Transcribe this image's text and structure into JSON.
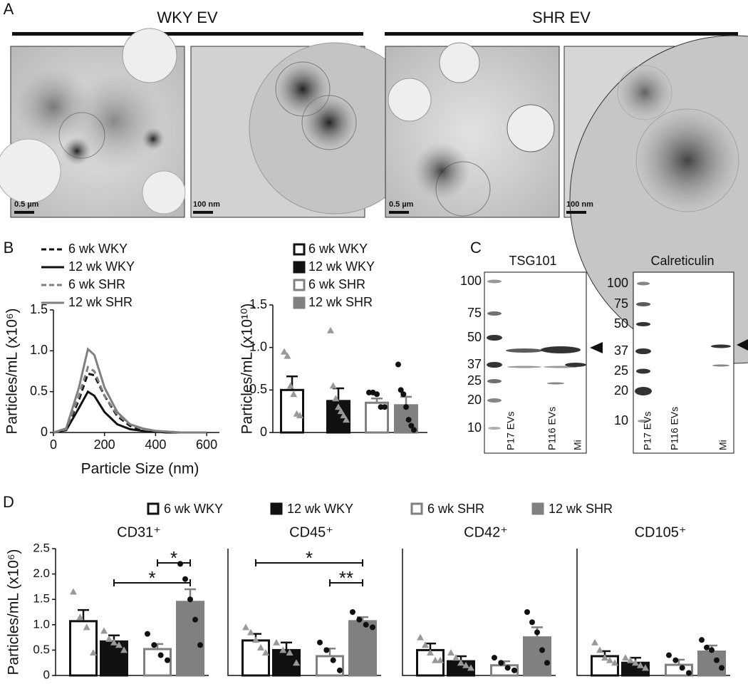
{
  "panel_labels": [
    "A",
    "B",
    "C",
    "D"
  ],
  "micrographs": {
    "groups": [
      "WKY EV",
      "SHR EV"
    ],
    "scale_bars": [
      "0.5 µm",
      "100 nm",
      "0.5 µm",
      "100 nm"
    ]
  },
  "blots": [
    {
      "title": "TSG101",
      "ladder": [
        100,
        75,
        50,
        37,
        25,
        20,
        10
      ],
      "lanes": [
        "P17 EVs",
        "P116 EVs",
        "Mi"
      ]
    },
    {
      "title": "Calreticulin",
      "ladder": [
        100,
        75,
        50,
        37,
        25,
        20,
        10
      ],
      "lanes": [
        "P17 EVs",
        "P116 EVs",
        "Mi"
      ]
    }
  ],
  "chart_data": [
    {
      "type": "line",
      "xlabel": "Particle Size (nm)",
      "ylabel": "Particles/mL (x10⁶)",
      "x": [
        0,
        50,
        100,
        135,
        160,
        200,
        250,
        300,
        350,
        400,
        450,
        500,
        550,
        600
      ],
      "xlim": [
        0,
        650
      ],
      "xticks": [
        0,
        200,
        400,
        600
      ],
      "ylim": [
        0,
        1.5
      ],
      "yticks": [
        0,
        0.5,
        {
          "value": 1,
          "label": "1.0"
        },
        1.5
      ],
      "legend": true,
      "series": [
        {
          "name": "6 wk WKY",
          "color": "#111111",
          "dash": true,
          "values": [
            0,
            0.03,
            0.4,
            0.72,
            0.7,
            0.45,
            0.2,
            0.08,
            0.03,
            0.01,
            0,
            0,
            0,
            0
          ]
        },
        {
          "name": "12 wk WKY",
          "color": "#111111",
          "dash": false,
          "values": [
            0,
            0.03,
            0.3,
            0.5,
            0.45,
            0.25,
            0.1,
            0.04,
            0.02,
            0.01,
            0,
            0,
            0,
            0
          ]
        },
        {
          "name": "6 wk SHR",
          "color": "#808080",
          "dash": true,
          "values": [
            0,
            0.04,
            0.45,
            0.8,
            0.75,
            0.45,
            0.22,
            0.1,
            0.04,
            0.02,
            0.01,
            0,
            0,
            0
          ]
        },
        {
          "name": "12 wk SHR",
          "color": "#808080",
          "dash": false,
          "values": [
            0,
            0.05,
            0.55,
            1.02,
            0.95,
            0.55,
            0.25,
            0.1,
            0.05,
            0.02,
            0.01,
            0,
            0,
            0
          ]
        }
      ]
    },
    {
      "type": "bar",
      "ylabel": "Particles/mL (x10¹⁰)",
      "ylim": [
        0,
        1.5
      ],
      "yticks": [
        0,
        0.5,
        {
          "value": 1,
          "label": "1.0"
        },
        1.5
      ],
      "legend": true,
      "series": [
        {
          "name": "6 wk WKY",
          "color": "#111111",
          "fill": "#ffffff",
          "marker": "triangle",
          "marker_color": "#999999",
          "value": 0.5,
          "error": 0.16,
          "points": [
            0.95,
            0.9,
            0.55,
            0.45,
            0.22,
            0.2
          ]
        },
        {
          "name": "12 wk WKY",
          "color": "#111111",
          "fill": "#111111",
          "marker": "triangle",
          "marker_color": "#999999",
          "value": 0.37,
          "error": 0.15,
          "points": [
            1.2,
            0.55,
            0.4,
            0.3,
            0.25,
            0.2,
            0.15
          ]
        },
        {
          "name": "6 wk SHR",
          "color": "#808080",
          "fill": "#ffffff",
          "marker": "circle",
          "marker_color": "#111111",
          "value": 0.35,
          "error": 0.05,
          "points": [
            0.47,
            0.47,
            0.45,
            0.3,
            0.3
          ]
        },
        {
          "name": "12 wk SHR",
          "color": "#808080",
          "fill": "#808080",
          "marker": "circle",
          "marker_color": "#111111",
          "value": 0.32,
          "error": 0.1,
          "points": [
            0.8,
            0.5,
            0.45,
            0.3,
            0.15,
            0.08,
            0.03
          ]
        }
      ]
    },
    {
      "type": "bar",
      "title": "CD31⁺",
      "ylabel": "Particles/mL (x10⁶)",
      "ylim": [
        0,
        2.5
      ],
      "yticks": [
        0,
        0.5,
        {
          "value": 1,
          "label": "1.0"
        },
        1.5,
        {
          "value": 2,
          "label": "2.0"
        },
        2.5
      ],
      "legend": true,
      "series": [
        {
          "name": "6 wk WKY",
          "color": "#111111",
          "fill": "#ffffff",
          "marker": "triangle",
          "marker_color": "#999999",
          "value": 1.07,
          "error": 0.22,
          "points": [
            1.65,
            1.15,
            0.95,
            0.45
          ]
        },
        {
          "name": "12 wk WKY",
          "color": "#111111",
          "fill": "#111111",
          "marker": "triangle",
          "marker_color": "#999999",
          "value": 0.67,
          "error": 0.12,
          "points": [
            0.88,
            0.72,
            0.65,
            0.6,
            0.5
          ]
        },
        {
          "name": "6 wk SHR",
          "color": "#808080",
          "fill": "#ffffff",
          "marker": "circle",
          "marker_color": "#111111",
          "value": 0.52,
          "error": 0.1,
          "points": [
            0.82,
            0.6,
            0.4,
            0.3
          ]
        },
        {
          "name": "12 wk SHR",
          "color": "#808080",
          "fill": "#808080",
          "marker": "circle",
          "marker_color": "#111111",
          "value": 1.45,
          "error": 0.25,
          "points": [
            2.2,
            1.9,
            1.5,
            1.1,
            0.6
          ]
        }
      ],
      "annotations": [
        {
          "text": "*",
          "groups": [
            1,
            3
          ]
        },
        {
          "text": "*",
          "groups": [
            2,
            3
          ]
        }
      ]
    },
    {
      "type": "bar",
      "title": "CD45⁺",
      "ylim": [
        0,
        2.5
      ],
      "series": [
        {
          "color": "#111111",
          "fill": "#ffffff",
          "marker": "triangle",
          "marker_color": "#999999",
          "value": 0.69,
          "error": 0.13,
          "points": [
            0.95,
            0.85,
            0.7,
            0.55,
            0.45
          ]
        },
        {
          "color": "#111111",
          "fill": "#111111",
          "marker": "triangle",
          "marker_color": "#999999",
          "value": 0.5,
          "error": 0.15,
          "points": [
            0.65,
            0.5,
            0.45,
            0.25
          ]
        },
        {
          "color": "#808080",
          "fill": "#ffffff",
          "marker": "circle",
          "marker_color": "#111111",
          "value": 0.38,
          "error": 0.15,
          "points": [
            0.65,
            0.5,
            0.3,
            0.1
          ]
        },
        {
          "color": "#808080",
          "fill": "#808080",
          "marker": "circle",
          "marker_color": "#111111",
          "value": 1.07,
          "error": 0.08,
          "points": [
            1.25,
            1.1,
            1.0,
            0.95
          ]
        }
      ],
      "annotations": [
        {
          "text": "**",
          "groups": [
            2,
            3
          ]
        },
        {
          "text": "*",
          "groups": [
            0,
            3
          ]
        }
      ]
    },
    {
      "type": "bar",
      "title": "CD42⁺",
      "ylim": [
        0,
        2.5
      ],
      "series": [
        {
          "color": "#111111",
          "fill": "#ffffff",
          "marker": "triangle",
          "marker_color": "#999999",
          "value": 0.5,
          "error": 0.13,
          "points": [
            0.75,
            0.6,
            0.45,
            0.3,
            0.3
          ]
        },
        {
          "color": "#111111",
          "fill": "#111111",
          "marker": "triangle",
          "marker_color": "#999999",
          "value": 0.28,
          "error": 0.1,
          "points": [
            0.45,
            0.35,
            0.25,
            0.2,
            0.15
          ]
        },
        {
          "color": "#808080",
          "fill": "#ffffff",
          "marker": "circle",
          "marker_color": "#111111",
          "value": 0.2,
          "error": 0.08,
          "points": [
            0.35,
            0.25,
            0.15,
            0.1
          ]
        },
        {
          "color": "#808080",
          "fill": "#808080",
          "marker": "circle",
          "marker_color": "#111111",
          "value": 0.75,
          "error": 0.2,
          "points": [
            1.25,
            1.05,
            0.85,
            0.5,
            0.25
          ]
        }
      ]
    },
    {
      "type": "bar",
      "title": "CD105⁺",
      "ylim": [
        0,
        2.5
      ],
      "series": [
        {
          "color": "#111111",
          "fill": "#ffffff",
          "marker": "triangle",
          "marker_color": "#999999",
          "value": 0.38,
          "error": 0.1,
          "points": [
            0.65,
            0.5,
            0.35,
            0.3,
            0.25
          ]
        },
        {
          "color": "#111111",
          "fill": "#111111",
          "marker": "triangle",
          "marker_color": "#999999",
          "value": 0.25,
          "error": 0.1,
          "points": [
            0.35,
            0.3,
            0.25,
            0.2,
            0.15
          ]
        },
        {
          "color": "#808080",
          "fill": "#ffffff",
          "marker": "circle",
          "marker_color": "#111111",
          "value": 0.21,
          "error": 0.1,
          "points": [
            0.4,
            0.3,
            0.15,
            0.05
          ]
        },
        {
          "color": "#808080",
          "fill": "#808080",
          "marker": "circle",
          "marker_color": "#111111",
          "value": 0.47,
          "error": 0.12,
          "points": [
            0.7,
            0.55,
            0.5,
            0.3,
            0.15
          ]
        }
      ]
    }
  ]
}
